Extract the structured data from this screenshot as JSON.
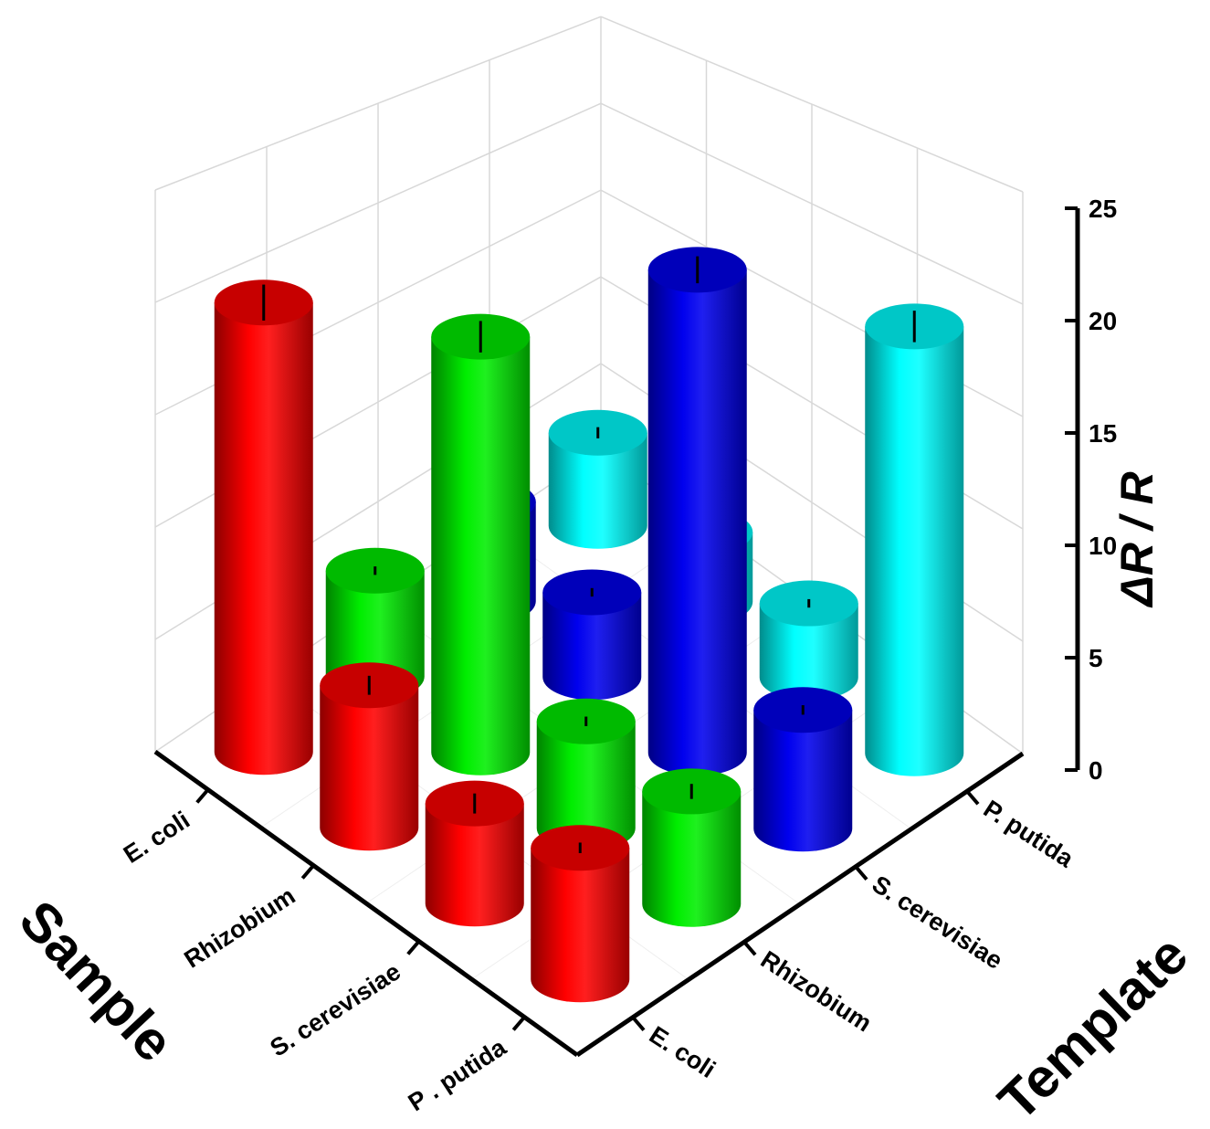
{
  "chart_data": {
    "type": "bar3d",
    "x_label": "Template",
    "y_label": "Sample",
    "z_label": "ΔR / R",
    "categories": [
      "E. coli",
      "Rhizobium",
      "S. cerevisiae",
      "P . putida"
    ],
    "series": [
      {
        "name": "E. coli",
        "color": "#ff0000",
        "values": [
          20,
          6,
          4,
          5
        ],
        "errors": [
          0.8,
          0.4,
          0.4,
          0.2
        ]
      },
      {
        "name": "Rhizobium",
        "color": "#00ee00",
        "values": [
          5,
          18.5,
          4.5,
          4.5
        ],
        "errors": [
          0.2,
          0.7,
          0.2,
          0.3
        ]
      },
      {
        "name": "S. cerevisiae",
        "color": "#0000ee",
        "values": [
          5,
          4,
          21.5,
          5
        ],
        "errors": [
          0.3,
          0.2,
          0.6,
          0.2
        ]
      },
      {
        "name": "P. putida",
        "color": "#00ffff",
        "values": [
          5,
          3.5,
          3.5,
          19
        ],
        "errors": [
          0.3,
          0.2,
          0.2,
          0.7
        ]
      }
    ],
    "zlim": [
      0,
      25
    ],
    "zticks": [
      0,
      5,
      10,
      15,
      20,
      25
    ],
    "grid": true
  }
}
